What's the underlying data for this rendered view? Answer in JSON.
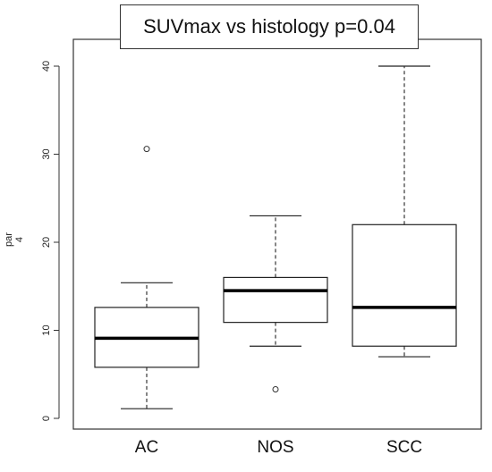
{
  "chart_data": {
    "type": "boxplot",
    "title": "SUVmax vs histology p=0.04",
    "ylabel": "par\n4",
    "xlabel": "",
    "categories": [
      "AC",
      "NOS",
      "SCC"
    ],
    "ylim": [
      0,
      40
    ],
    "yticks": [
      "0",
      "10",
      "20",
      "30",
      "40"
    ],
    "boxes": [
      {
        "name": "AC",
        "whisker_low": 1.1,
        "q1": 5.8,
        "median": 9.1,
        "q3": 12.6,
        "whisker_high": 15.4,
        "outliers": [
          30.6
        ]
      },
      {
        "name": "NOS",
        "whisker_low": 8.2,
        "q1": 10.9,
        "median": 14.5,
        "q3": 16.0,
        "whisker_high": 23.0,
        "outliers": [
          3.3
        ]
      },
      {
        "name": "SCC",
        "whisker_low": 7.0,
        "q1": 8.2,
        "median": 12.6,
        "q3": 22.0,
        "whisker_high": 40.0,
        "outliers": []
      }
    ],
    "grid": false,
    "legend": "none"
  }
}
